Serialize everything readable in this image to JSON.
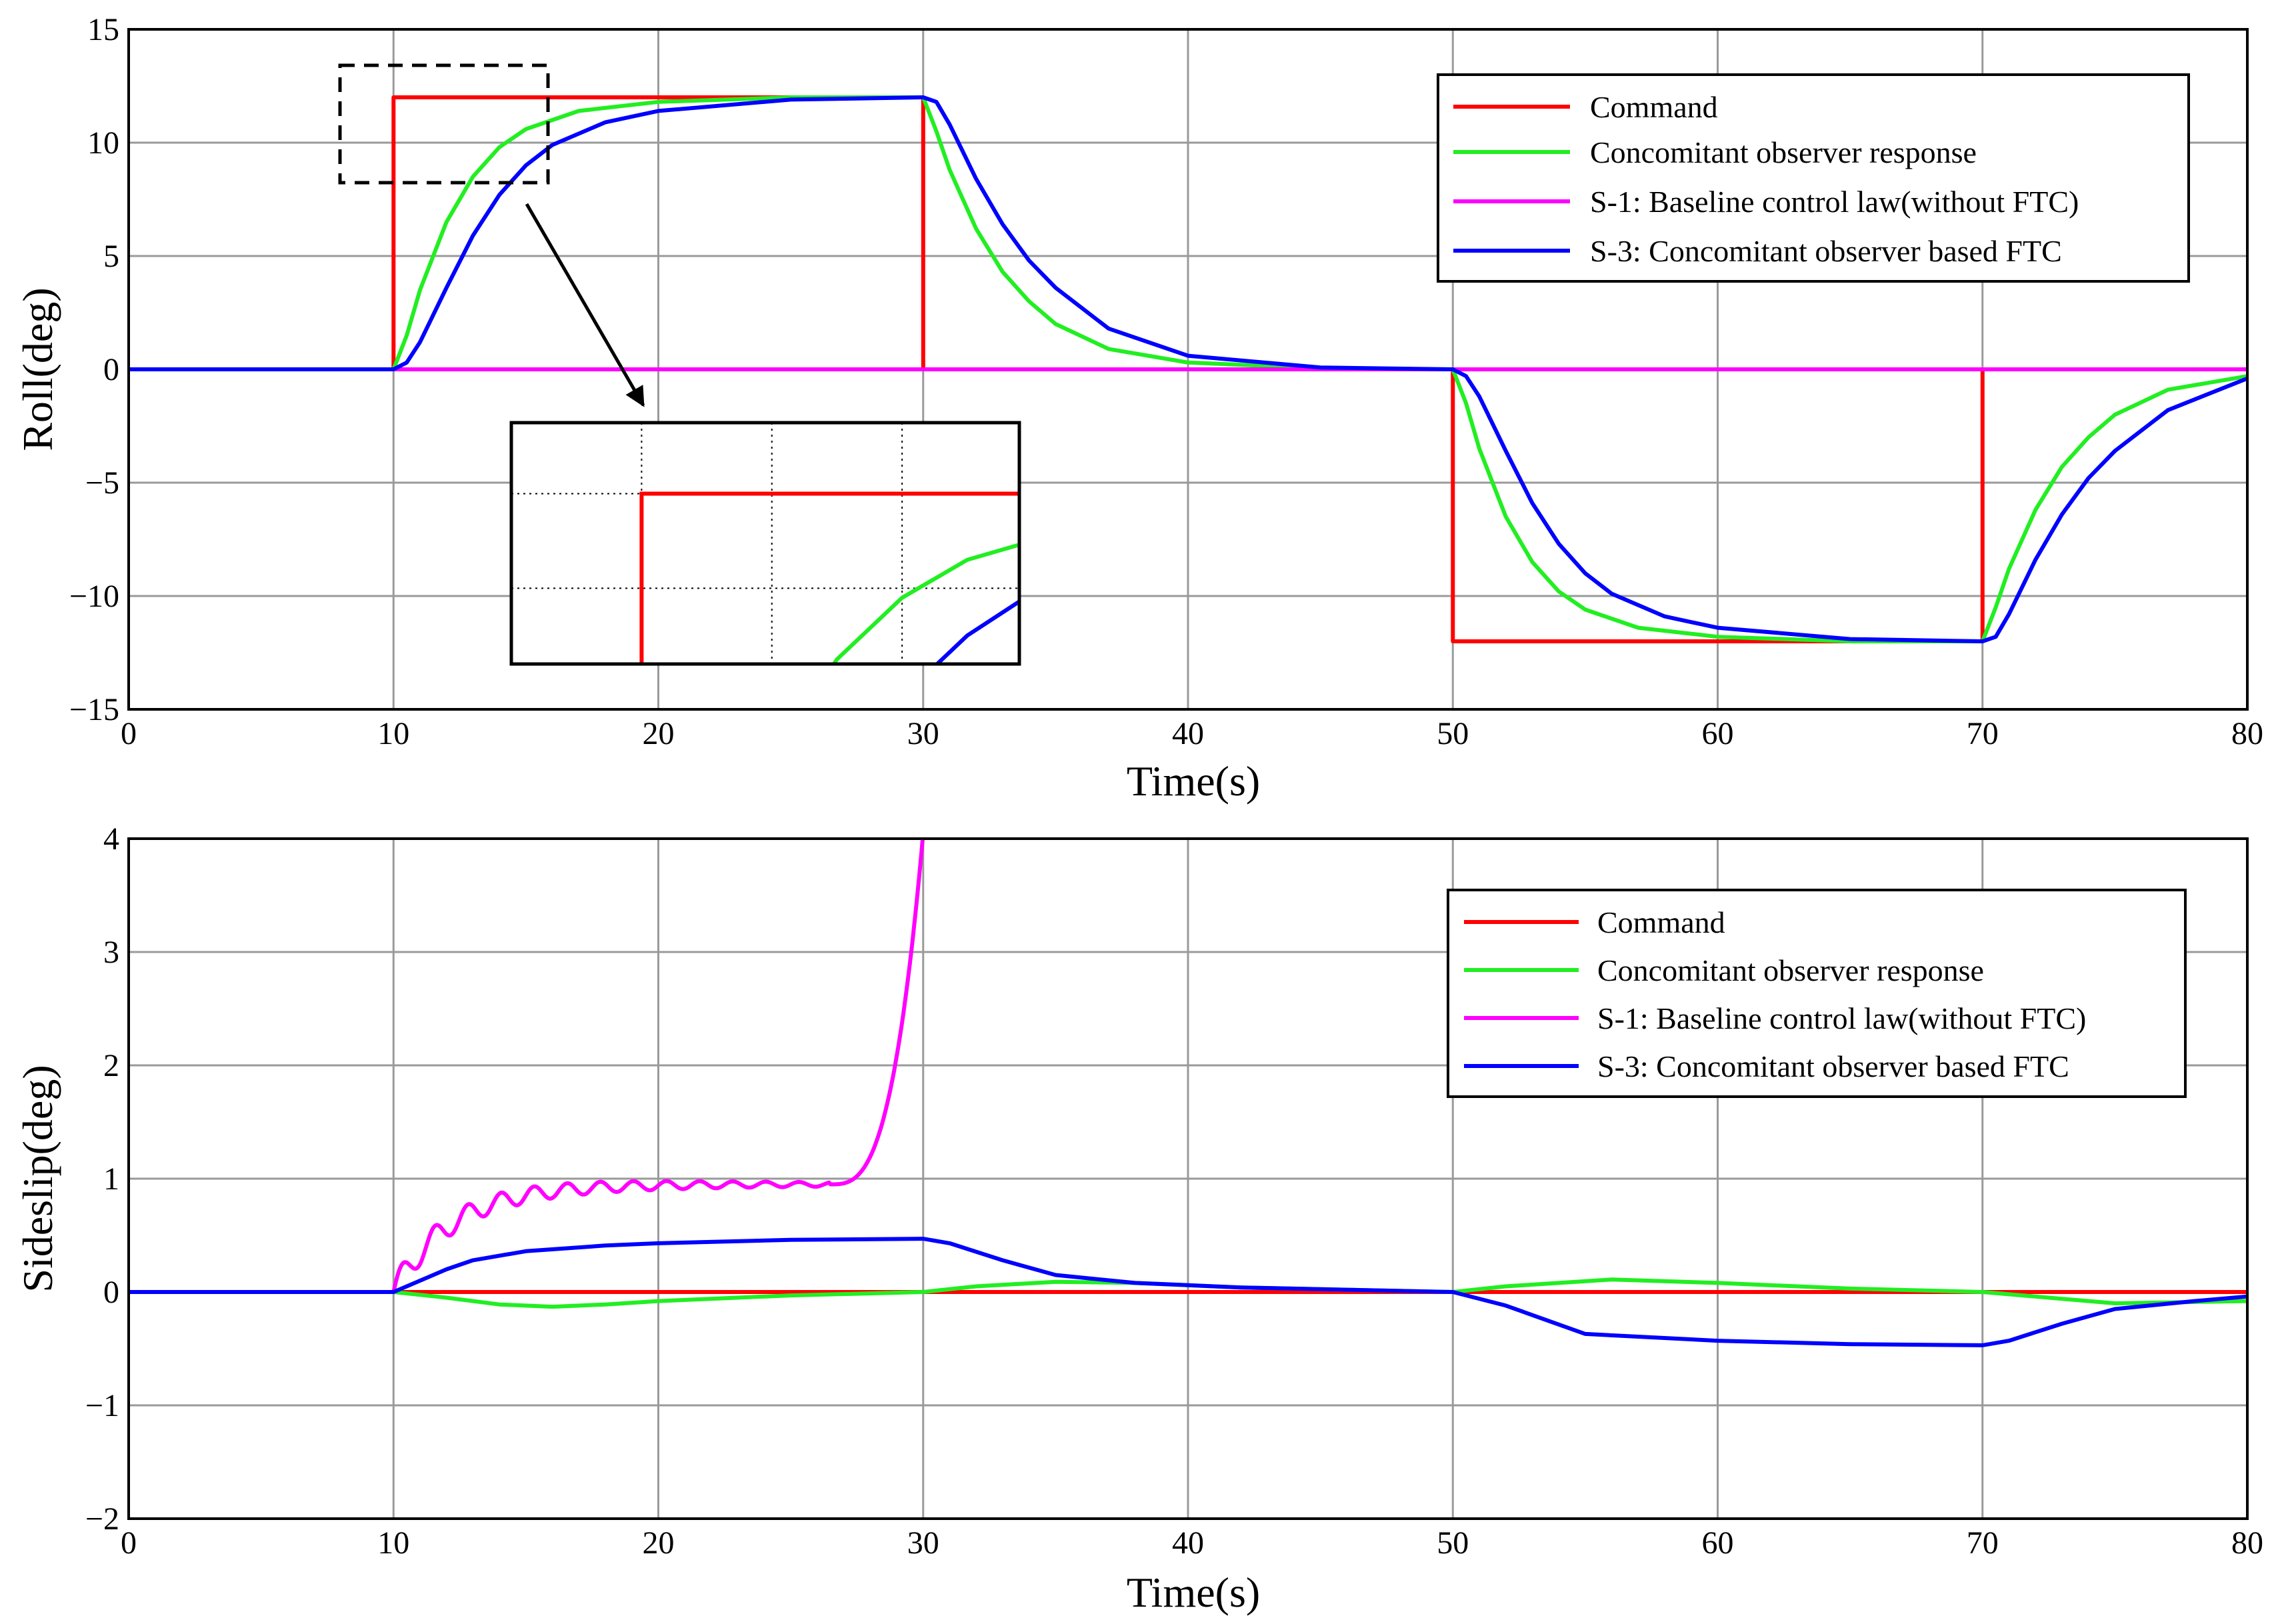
{
  "colors": {
    "command": "#ff0000",
    "observer": "#22ee22",
    "baseline": "#ff00ff",
    "ftc": "#0000ff",
    "grid": "#9a9a9a",
    "frame": "#000000"
  },
  "chart_data": [
    {
      "id": "roll",
      "type": "line",
      "ylabel": "Roll(deg)",
      "xlabel": "Time(s)",
      "xlim": [
        0,
        80
      ],
      "ylim": [
        -15,
        15
      ],
      "xticks": [
        0,
        10,
        20,
        30,
        40,
        50,
        60,
        70,
        80
      ],
      "yticks": [
        15,
        10,
        5,
        0,
        -5,
        -10,
        -15
      ],
      "ytick_labels": [
        "15",
        "10",
        "5",
        "0",
        "−5",
        "−10",
        "−15"
      ],
      "grid": true,
      "legend": {
        "position": "top-right",
        "entries": [
          "Command",
          "Concomitant observer response",
          "S-1: Baseline control law(without FTC)",
          "S-3: Concomitant observer based FTC"
        ]
      },
      "series": [
        {
          "name": "Command",
          "color": "command",
          "points": [
            [
              0,
              0
            ],
            [
              10,
              0
            ],
            [
              10,
              12
            ],
            [
              30,
              12
            ],
            [
              30,
              0
            ],
            [
              50,
              0
            ],
            [
              50,
              -12
            ],
            [
              70,
              -12
            ],
            [
              70,
              0
            ],
            [
              80,
              0
            ]
          ]
        },
        {
          "name": "Concomitant observer response",
          "color": "observer",
          "points": [
            [
              0,
              0
            ],
            [
              10,
              0
            ],
            [
              10.5,
              1.5
            ],
            [
              11,
              3.5
            ],
            [
              12,
              6.5
            ],
            [
              13,
              8.5
            ],
            [
              14,
              9.8
            ],
            [
              15,
              10.6
            ],
            [
              17,
              11.4
            ],
            [
              20,
              11.8
            ],
            [
              25,
              12
            ],
            [
              30,
              12
            ],
            [
              30.5,
              10.5
            ],
            [
              31,
              8.8
            ],
            [
              32,
              6.2
            ],
            [
              33,
              4.3
            ],
            [
              34,
              3.0
            ],
            [
              35,
              2.0
            ],
            [
              37,
              0.9
            ],
            [
              40,
              0.3
            ],
            [
              45,
              0.05
            ],
            [
              50,
              0
            ],
            [
              50.5,
              -1.5
            ],
            [
              51,
              -3.5
            ],
            [
              52,
              -6.5
            ],
            [
              53,
              -8.5
            ],
            [
              54,
              -9.8
            ],
            [
              55,
              -10.6
            ],
            [
              57,
              -11.4
            ],
            [
              60,
              -11.8
            ],
            [
              65,
              -12
            ],
            [
              70,
              -12
            ],
            [
              70.5,
              -10.5
            ],
            [
              71,
              -8.8
            ],
            [
              72,
              -6.2
            ],
            [
              73,
              -4.3
            ],
            [
              74,
              -3.0
            ],
            [
              75,
              -2.0
            ],
            [
              77,
              -0.9
            ],
            [
              80,
              -0.3
            ]
          ]
        },
        {
          "name": "S-1: Baseline control law(without FTC)",
          "color": "baseline",
          "points": [
            [
              0,
              0
            ],
            [
              80,
              0
            ]
          ]
        },
        {
          "name": "S-3: Concomitant observer based FTC",
          "color": "ftc",
          "points": [
            [
              0,
              0
            ],
            [
              10,
              0
            ],
            [
              10.5,
              0.3
            ],
            [
              11,
              1.2
            ],
            [
              12,
              3.6
            ],
            [
              13,
              5.9
            ],
            [
              14,
              7.7
            ],
            [
              15,
              9.0
            ],
            [
              16,
              9.9
            ],
            [
              18,
              10.9
            ],
            [
              20,
              11.4
            ],
            [
              25,
              11.9
            ],
            [
              30,
              12
            ],
            [
              30.5,
              11.8
            ],
            [
              31,
              10.8
            ],
            [
              32,
              8.4
            ],
            [
              33,
              6.4
            ],
            [
              34,
              4.8
            ],
            [
              35,
              3.6
            ],
            [
              37,
              1.8
            ],
            [
              40,
              0.6
            ],
            [
              45,
              0.08
            ],
            [
              50,
              0
            ],
            [
              50.5,
              -0.3
            ],
            [
              51,
              -1.2
            ],
            [
              52,
              -3.6
            ],
            [
              53,
              -5.9
            ],
            [
              54,
              -7.7
            ],
            [
              55,
              -9.0
            ],
            [
              56,
              -9.9
            ],
            [
              58,
              -10.9
            ],
            [
              60,
              -11.4
            ],
            [
              65,
              -11.9
            ],
            [
              70,
              -12
            ],
            [
              70.5,
              -11.8
            ],
            [
              71,
              -10.8
            ],
            [
              72,
              -8.4
            ],
            [
              73,
              -6.4
            ],
            [
              74,
              -4.8
            ],
            [
              75,
              -3.6
            ],
            [
              77,
              -1.8
            ],
            [
              80,
              -0.4
            ]
          ]
        }
      ],
      "annotations": [
        {
          "type": "zoom-box",
          "x_range": [
            8,
            15.8
          ],
          "y_range": [
            8.4,
            13.5
          ]
        },
        {
          "type": "inset",
          "x_range": [
            8,
            15.8
          ],
          "y_range": [
            8.4,
            13.5
          ]
        }
      ]
    },
    {
      "id": "sideslip",
      "type": "line",
      "ylabel": "Sideslip(deg)",
      "xlabel": "Time(s)",
      "xlim": [
        0,
        80
      ],
      "ylim": [
        -2,
        4
      ],
      "xticks": [
        0,
        10,
        20,
        30,
        40,
        50,
        60,
        70,
        80
      ],
      "yticks": [
        4,
        3,
        2,
        1,
        0,
        -1,
        -2
      ],
      "ytick_labels": [
        "4",
        "3",
        "2",
        "1",
        "0",
        "−1",
        "−2"
      ],
      "grid": true,
      "legend": {
        "position": "top-right",
        "entries": [
          "Command",
          "Concomitant observer response",
          "S-1: Baseline control law(without FTC)",
          "S-3: Concomitant observer based FTC"
        ]
      },
      "series": [
        {
          "name": "Command",
          "color": "command",
          "points": [
            [
              0,
              0
            ],
            [
              80,
              0
            ]
          ]
        },
        {
          "name": "Concomitant observer response",
          "color": "observer",
          "points": [
            [
              0,
              0
            ],
            [
              10,
              0
            ],
            [
              12,
              -0.05
            ],
            [
              14,
              -0.11
            ],
            [
              16,
              -0.13
            ],
            [
              18,
              -0.11
            ],
            [
              20,
              -0.08
            ],
            [
              25,
              -0.03
            ],
            [
              30,
              0
            ],
            [
              32,
              0.05
            ],
            [
              35,
              0.09
            ],
            [
              38,
              0.08
            ],
            [
              42,
              0.04
            ],
            [
              46,
              0.02
            ],
            [
              50,
              0
            ],
            [
              52,
              0.05
            ],
            [
              56,
              0.11
            ],
            [
              60,
              0.08
            ],
            [
              65,
              0.03
            ],
            [
              70,
              0
            ],
            [
              75,
              -0.1
            ],
            [
              80,
              -0.08
            ]
          ]
        },
        {
          "name": "S-1: Baseline control law(without FTC)",
          "color": "baseline",
          "wavy": true,
          "points": [
            [
              0,
              0
            ],
            [
              10,
              0
            ],
            [
              30,
              4.05
            ]
          ]
        },
        {
          "name": "S-3: Concomitant observer based FTC",
          "color": "ftc",
          "points": [
            [
              0,
              0
            ],
            [
              10,
              0
            ],
            [
              11,
              0.1
            ],
            [
              12,
              0.2
            ],
            [
              13,
              0.28
            ],
            [
              15,
              0.36
            ],
            [
              18,
              0.41
            ],
            [
              20,
              0.43
            ],
            [
              25,
              0.46
            ],
            [
              30,
              0.47
            ],
            [
              31,
              0.43
            ],
            [
              33,
              0.28
            ],
            [
              35,
              0.15
            ],
            [
              38,
              0.08
            ],
            [
              42,
              0.04
            ],
            [
              46,
              0.02
            ],
            [
              50,
              0
            ],
            [
              52,
              -0.12
            ],
            [
              55,
              -0.37
            ],
            [
              60,
              -0.43
            ],
            [
              65,
              -0.46
            ],
            [
              70,
              -0.47
            ],
            [
              71,
              -0.43
            ],
            [
              73,
              -0.28
            ],
            [
              75,
              -0.15
            ],
            [
              78,
              -0.08
            ],
            [
              80,
              -0.04
            ]
          ]
        }
      ]
    }
  ]
}
